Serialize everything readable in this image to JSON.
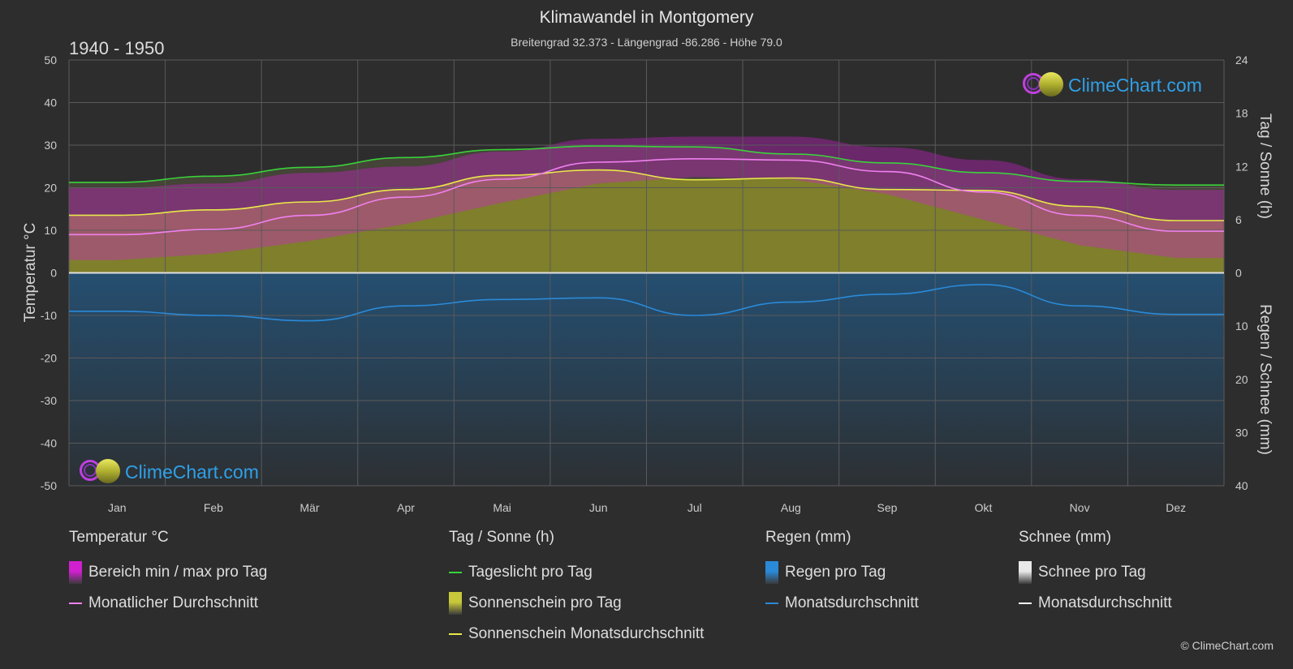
{
  "header": {
    "title": "Klimawandel in Montgomery",
    "subtitle": "Breitengrad 32.373 - Längengrad -86.286 - Höhe 79.0",
    "period": "1940 - 1950"
  },
  "logo_text": "ClimeChart.com",
  "copyright": "© ClimeChart.com",
  "colors": {
    "background": "#2d2d2d",
    "daylight": "#3ad23a",
    "sunshine_avg": "#e8e84a",
    "sunshine_fill": "#8a8a2a",
    "temp_avg": "#f080f0",
    "temp_range": "#d020d0",
    "rain": "#2a8ad8",
    "snow": "#ffffff"
  },
  "chart_data": {
    "type": "area",
    "categories": [
      "Jan",
      "Feb",
      "Mär",
      "Apr",
      "Mai",
      "Jun",
      "Jul",
      "Aug",
      "Sep",
      "Okt",
      "Nov",
      "Dez"
    ],
    "left_axis": {
      "label": "Temperatur °C",
      "range": [
        -50,
        50
      ],
      "ticks": [
        "50",
        "40",
        "30",
        "20",
        "10",
        "0",
        "-10",
        "-20",
        "-30",
        "-40",
        "-50"
      ]
    },
    "right_axis_top": {
      "label": "Tag / Sonne (h)",
      "range": [
        0,
        24
      ],
      "ticks": [
        "24",
        "18",
        "12",
        "6",
        "0"
      ]
    },
    "right_axis_bottom": {
      "label": "Regen / Schnee (mm)",
      "range": [
        0,
        40
      ],
      "ticks": [
        "0",
        "10",
        "20",
        "30",
        "40"
      ]
    },
    "series": [
      {
        "name": "Tageslicht pro Tag",
        "unit": "h",
        "values": [
          10.2,
          10.9,
          11.9,
          13.0,
          13.9,
          14.3,
          14.2,
          13.4,
          12.4,
          11.3,
          10.3,
          9.9
        ]
      },
      {
        "name": "Sonnenschein Monatsdurchschnitt",
        "unit": "h",
        "values": [
          6.5,
          7.1,
          8.0,
          9.4,
          11.0,
          11.6,
          10.5,
          10.7,
          9.4,
          9.3,
          7.5,
          5.9
        ]
      },
      {
        "name": "Monatlicher Durchschnitt",
        "unit": "°C",
        "values": [
          9.0,
          10.2,
          13.5,
          17.8,
          22.0,
          26.0,
          26.8,
          26.5,
          23.8,
          19.0,
          13.5,
          9.8
        ]
      },
      {
        "name": "Bereich min / max pro Tag",
        "unit": "°C",
        "min": [
          3.0,
          4.5,
          7.5,
          11.5,
          16.5,
          21.0,
          22.5,
          22.0,
          18.5,
          12.5,
          6.5,
          3.5
        ],
        "max": [
          20.0,
          21.0,
          23.5,
          25.0,
          28.5,
          31.5,
          32.0,
          32.0,
          29.5,
          26.5,
          22.0,
          19.5
        ]
      },
      {
        "name": "Regen Monatsdurchschnitt",
        "unit": "mm",
        "values": [
          7.2,
          8.0,
          9.0,
          6.2,
          5.0,
          4.7,
          8.0,
          5.5,
          4.0,
          2.2,
          6.2,
          7.8
        ]
      },
      {
        "name": "Schnee Monatsdurchschnitt",
        "unit": "mm",
        "values": [
          0,
          0,
          0,
          0,
          0,
          0,
          0,
          0,
          0,
          0,
          0,
          0
        ]
      }
    ],
    "grid": true
  },
  "legend": {
    "groups": [
      {
        "title": "Temperatur °C",
        "items": [
          {
            "label": "Bereich min / max pro Tag",
            "kind": "box",
            "color": "#d020d0"
          },
          {
            "label": "Monatlicher Durchschnitt",
            "kind": "line",
            "color": "#f080f0"
          }
        ]
      },
      {
        "title": "Tag / Sonne (h)",
        "items": [
          {
            "label": "Tageslicht pro Tag",
            "kind": "line",
            "color": "#3ad23a"
          },
          {
            "label": "Sonnenschein pro Tag",
            "kind": "box",
            "color": "#c8c83a"
          },
          {
            "label": "Sonnenschein Monatsdurchschnitt",
            "kind": "line",
            "color": "#e8e84a"
          }
        ]
      },
      {
        "title": "Regen (mm)",
        "items": [
          {
            "label": "Regen pro Tag",
            "kind": "box",
            "color": "#2a8ad8"
          },
          {
            "label": "Monatsdurchschnitt",
            "kind": "line",
            "color": "#2a8ad8"
          }
        ]
      },
      {
        "title": "Schnee (mm)",
        "items": [
          {
            "label": "Schnee pro Tag",
            "kind": "box",
            "color": "#e8e8e8"
          },
          {
            "label": "Monatsdurchschnitt",
            "kind": "line",
            "color": "#ffffff"
          }
        ]
      }
    ]
  }
}
